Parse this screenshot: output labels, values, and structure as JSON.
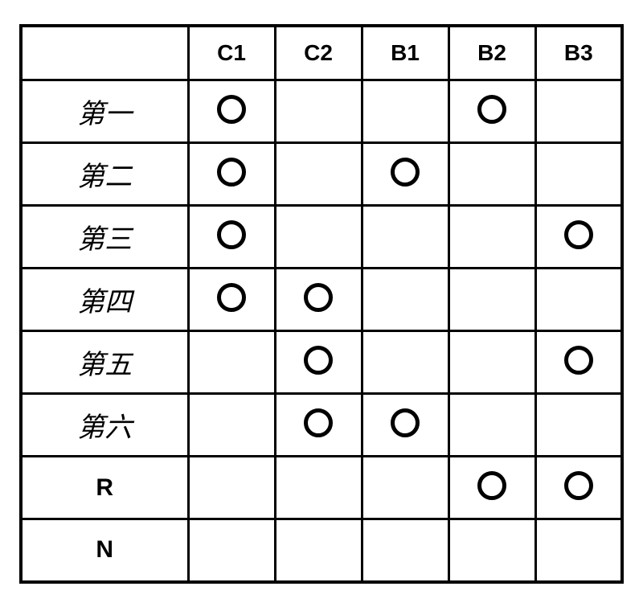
{
  "table": {
    "type": "table",
    "border_color": "#000000",
    "outer_border_width": 4,
    "inner_border_width": 3,
    "background_color": "#ffffff",
    "header_fontsize": 28,
    "row_label_fontsize": 34,
    "roman_label_fontsize": 30,
    "circle_stroke_width": 5,
    "circle_diameter": 36,
    "columns": [
      "",
      "C1",
      "C2",
      "B1",
      "B2",
      "B3"
    ],
    "rows": [
      {
        "label": "第一",
        "roman": false,
        "cells": [
          true,
          false,
          false,
          true,
          false
        ]
      },
      {
        "label": "第二",
        "roman": false,
        "cells": [
          true,
          false,
          true,
          false,
          false
        ]
      },
      {
        "label": "第三",
        "roman": false,
        "cells": [
          true,
          false,
          false,
          false,
          true
        ]
      },
      {
        "label": "第四",
        "roman": false,
        "cells": [
          true,
          true,
          false,
          false,
          false
        ]
      },
      {
        "label": "第五",
        "roman": false,
        "cells": [
          false,
          true,
          false,
          false,
          true
        ]
      },
      {
        "label": "第六",
        "roman": false,
        "cells": [
          false,
          true,
          true,
          false,
          false
        ]
      },
      {
        "label": "R",
        "roman": true,
        "cells": [
          false,
          false,
          false,
          true,
          true
        ]
      },
      {
        "label": "N",
        "roman": true,
        "cells": [
          false,
          false,
          false,
          false,
          false
        ]
      }
    ]
  }
}
